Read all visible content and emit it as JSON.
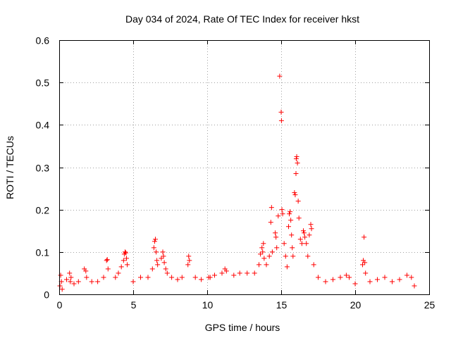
{
  "chart_data": {
    "type": "scatter",
    "title": "Day 034 of 2024, Rate Of TEC Index for receiver hkst",
    "xlabel": "GPS time / hours",
    "ylabel": "ROTI / TECUs",
    "xlim": [
      0,
      25
    ],
    "ylim": [
      0,
      0.6
    ],
    "x_ticks": [
      0,
      5,
      10,
      15,
      20,
      25
    ],
    "x_tick_labels": [
      "0",
      "5",
      "10",
      "15",
      "20",
      "25"
    ],
    "y_ticks": [
      0,
      0.1,
      0.2,
      0.3,
      0.4,
      0.5,
      0.6
    ],
    "y_tick_labels": [
      "0",
      "0.1",
      "0.2",
      "0.3",
      "0.4",
      "0.5",
      "0.6"
    ],
    "grid": true,
    "legend": "none",
    "marker": "plus",
    "marker_color": "#ff0000",
    "series": [
      {
        "points": [
          [
            0.05,
            0.02
          ],
          [
            0.1,
            0.045
          ],
          [
            0.15,
            0.03
          ],
          [
            0.2,
            0.012
          ],
          [
            0.5,
            0.035
          ],
          [
            0.7,
            0.05
          ],
          [
            0.75,
            0.03
          ],
          [
            0.8,
            0.04
          ],
          [
            1.0,
            0.025
          ],
          [
            1.3,
            0.03
          ],
          [
            1.7,
            0.06
          ],
          [
            1.8,
            0.055
          ],
          [
            1.85,
            0.04
          ],
          [
            2.2,
            0.03
          ],
          [
            2.6,
            0.03
          ],
          [
            3.0,
            0.04
          ],
          [
            3.2,
            0.08
          ],
          [
            3.25,
            0.082
          ],
          [
            3.3,
            0.06
          ],
          [
            3.8,
            0.04
          ],
          [
            4.0,
            0.05
          ],
          [
            4.2,
            0.065
          ],
          [
            4.35,
            0.08
          ],
          [
            4.4,
            0.095
          ],
          [
            4.45,
            0.1
          ],
          [
            4.5,
            0.098
          ],
          [
            4.55,
            0.085
          ],
          [
            4.6,
            0.07
          ],
          [
            5.0,
            0.03
          ],
          [
            5.5,
            0.04
          ],
          [
            6.0,
            0.04
          ],
          [
            6.3,
            0.06
          ],
          [
            6.4,
            0.11
          ],
          [
            6.45,
            0.125
          ],
          [
            6.5,
            0.13
          ],
          [
            6.55,
            0.1
          ],
          [
            6.6,
            0.08
          ],
          [
            6.65,
            0.07
          ],
          [
            6.9,
            0.085
          ],
          [
            7.0,
            0.1
          ],
          [
            7.05,
            0.09
          ],
          [
            7.1,
            0.075
          ],
          [
            7.2,
            0.06
          ],
          [
            7.3,
            0.05
          ],
          [
            7.6,
            0.04
          ],
          [
            8.0,
            0.035
          ],
          [
            8.3,
            0.04
          ],
          [
            8.7,
            0.07
          ],
          [
            8.75,
            0.09
          ],
          [
            8.8,
            0.08
          ],
          [
            9.2,
            0.04
          ],
          [
            9.6,
            0.035
          ],
          [
            10.1,
            0.04
          ],
          [
            10.2,
            0.04
          ],
          [
            10.5,
            0.045
          ],
          [
            11.0,
            0.05
          ],
          [
            11.2,
            0.06
          ],
          [
            11.3,
            0.055
          ],
          [
            11.8,
            0.045
          ],
          [
            12.2,
            0.05
          ],
          [
            12.7,
            0.05
          ],
          [
            13.2,
            0.05
          ],
          [
            13.5,
            0.07
          ],
          [
            13.6,
            0.095
          ],
          [
            13.7,
            0.11
          ],
          [
            13.75,
            0.1
          ],
          [
            13.8,
            0.12
          ],
          [
            13.85,
            0.085
          ],
          [
            14.0,
            0.07
          ],
          [
            14.2,
            0.09
          ],
          [
            14.3,
            0.17
          ],
          [
            14.35,
            0.205
          ],
          [
            14.4,
            0.1
          ],
          [
            14.6,
            0.145
          ],
          [
            14.65,
            0.135
          ],
          [
            14.7,
            0.11
          ],
          [
            14.8,
            0.185
          ],
          [
            14.9,
            0.515
          ],
          [
            15.0,
            0.43
          ],
          [
            15.02,
            0.41
          ],
          [
            15.05,
            0.2
          ],
          [
            15.1,
            0.19
          ],
          [
            15.2,
            0.12
          ],
          [
            15.3,
            0.09
          ],
          [
            15.4,
            0.065
          ],
          [
            15.5,
            0.16
          ],
          [
            15.55,
            0.19
          ],
          [
            15.6,
            0.195
          ],
          [
            15.65,
            0.175
          ],
          [
            15.7,
            0.14
          ],
          [
            15.75,
            0.11
          ],
          [
            15.8,
            0.09
          ],
          [
            15.9,
            0.24
          ],
          [
            15.95,
            0.235
          ],
          [
            16.0,
            0.285
          ],
          [
            16.02,
            0.32
          ],
          [
            16.05,
            0.325
          ],
          [
            16.1,
            0.31
          ],
          [
            16.15,
            0.22
          ],
          [
            16.2,
            0.18
          ],
          [
            16.3,
            0.13
          ],
          [
            16.4,
            0.12
          ],
          [
            16.5,
            0.15
          ],
          [
            16.55,
            0.145
          ],
          [
            16.6,
            0.135
          ],
          [
            16.7,
            0.12
          ],
          [
            16.8,
            0.09
          ],
          [
            16.9,
            0.14
          ],
          [
            17.0,
            0.165
          ],
          [
            17.05,
            0.155
          ],
          [
            17.2,
            0.07
          ],
          [
            17.5,
            0.04
          ],
          [
            18.0,
            0.03
          ],
          [
            18.5,
            0.035
          ],
          [
            19.0,
            0.04
          ],
          [
            19.4,
            0.045
          ],
          [
            19.6,
            0.04
          ],
          [
            20.0,
            0.025
          ],
          [
            20.5,
            0.07
          ],
          [
            20.55,
            0.08
          ],
          [
            20.6,
            0.135
          ],
          [
            20.65,
            0.075
          ],
          [
            20.7,
            0.05
          ],
          [
            21.0,
            0.03
          ],
          [
            21.5,
            0.035
          ],
          [
            22.0,
            0.04
          ],
          [
            22.5,
            0.03
          ],
          [
            23.0,
            0.035
          ],
          [
            23.5,
            0.045
          ],
          [
            23.8,
            0.04
          ],
          [
            24.0,
            0.02
          ]
        ]
      }
    ]
  }
}
